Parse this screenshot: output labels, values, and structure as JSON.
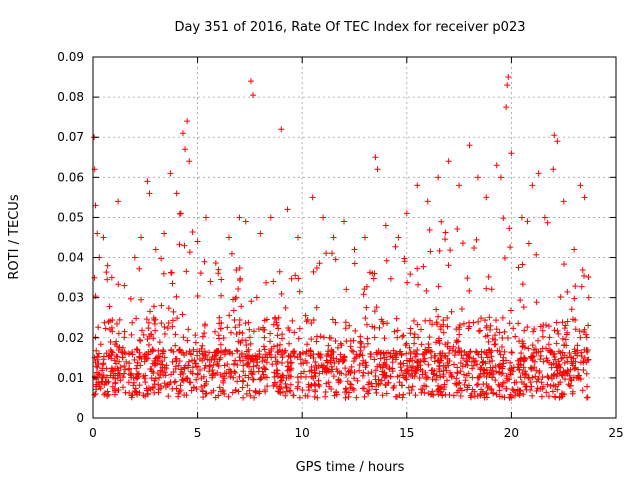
{
  "chart_data": {
    "type": "scatter",
    "title": "Day 351 of 2016, Rate Of TEC Index for receiver p023",
    "xlabel": "GPS time / hours",
    "ylabel": "ROTI / TECUs",
    "xlim": [
      0,
      25
    ],
    "ylim": [
      0,
      0.09
    ],
    "x_ticks": [
      0,
      5,
      10,
      15,
      20,
      25
    ],
    "x_tick_labels": [
      "0",
      "5",
      "10",
      "15",
      "20",
      "25"
    ],
    "y_ticks": [
      0,
      0.01,
      0.02,
      0.03,
      0.04,
      0.05,
      0.06,
      0.07,
      0.08,
      0.09
    ],
    "y_tick_labels": [
      "0",
      "0.01",
      "0.02",
      "0.03",
      "0.04",
      "0.05",
      "0.06",
      "0.07",
      "0.08",
      "0.09"
    ],
    "grid": true,
    "marker": "+",
    "color": "#ff0000",
    "series": [
      {
        "points": [
          [
            0.05,
            0.07
          ],
          [
            0.08,
            0.062
          ],
          [
            0.12,
            0.053
          ],
          [
            0.2,
            0.046
          ],
          [
            0.3,
            0.04
          ],
          [
            0.5,
            0.045
          ],
          [
            0.7,
            0.038
          ],
          [
            0.9,
            0.035
          ],
          [
            1.2,
            0.054
          ],
          [
            1.5,
            0.033
          ],
          [
            2.0,
            0.04
          ],
          [
            2.3,
            0.045
          ],
          [
            2.6,
            0.059
          ],
          [
            2.7,
            0.056
          ],
          [
            3.0,
            0.042
          ],
          [
            3.4,
            0.046
          ],
          [
            3.7,
            0.061
          ],
          [
            4.0,
            0.056
          ],
          [
            4.2,
            0.051
          ],
          [
            4.3,
            0.071
          ],
          [
            4.4,
            0.067
          ],
          [
            4.5,
            0.074
          ],
          [
            4.6,
            0.064
          ],
          [
            5.0,
            0.044
          ],
          [
            5.4,
            0.05
          ],
          [
            6.0,
            0.037
          ],
          [
            6.5,
            0.045
          ],
          [
            7.0,
            0.05
          ],
          [
            7.3,
            0.049
          ],
          [
            7.55,
            0.084
          ],
          [
            7.65,
            0.0805
          ],
          [
            8.0,
            0.046
          ],
          [
            8.5,
            0.05
          ],
          [
            9.0,
            0.072
          ],
          [
            9.3,
            0.052
          ],
          [
            9.8,
            0.045
          ],
          [
            10.5,
            0.055
          ],
          [
            11.0,
            0.05
          ],
          [
            11.5,
            0.045
          ],
          [
            12.0,
            0.049
          ],
          [
            12.5,
            0.042
          ],
          [
            13.0,
            0.045
          ],
          [
            13.5,
            0.065
          ],
          [
            13.6,
            0.062
          ],
          [
            14.0,
            0.048
          ],
          [
            14.6,
            0.045
          ],
          [
            15.0,
            0.051
          ],
          [
            15.5,
            0.058
          ],
          [
            16.0,
            0.054
          ],
          [
            16.5,
            0.06
          ],
          [
            17.0,
            0.064
          ],
          [
            17.5,
            0.058
          ],
          [
            18.0,
            0.068
          ],
          [
            18.4,
            0.06
          ],
          [
            18.8,
            0.055
          ],
          [
            19.3,
            0.063
          ],
          [
            19.5,
            0.06
          ],
          [
            19.75,
            0.0775
          ],
          [
            19.8,
            0.083
          ],
          [
            19.85,
            0.085
          ],
          [
            20.0,
            0.066
          ],
          [
            20.5,
            0.05
          ],
          [
            21.0,
            0.058
          ],
          [
            21.3,
            0.061
          ],
          [
            21.6,
            0.05
          ],
          [
            22.0,
            0.062
          ],
          [
            22.05,
            0.0705
          ],
          [
            22.2,
            0.069
          ],
          [
            22.5,
            0.054
          ],
          [
            23.0,
            0.042
          ],
          [
            23.3,
            0.058
          ],
          [
            23.5,
            0.055
          ],
          [
            23.7,
            0.03
          ]
        ]
      }
    ]
  }
}
